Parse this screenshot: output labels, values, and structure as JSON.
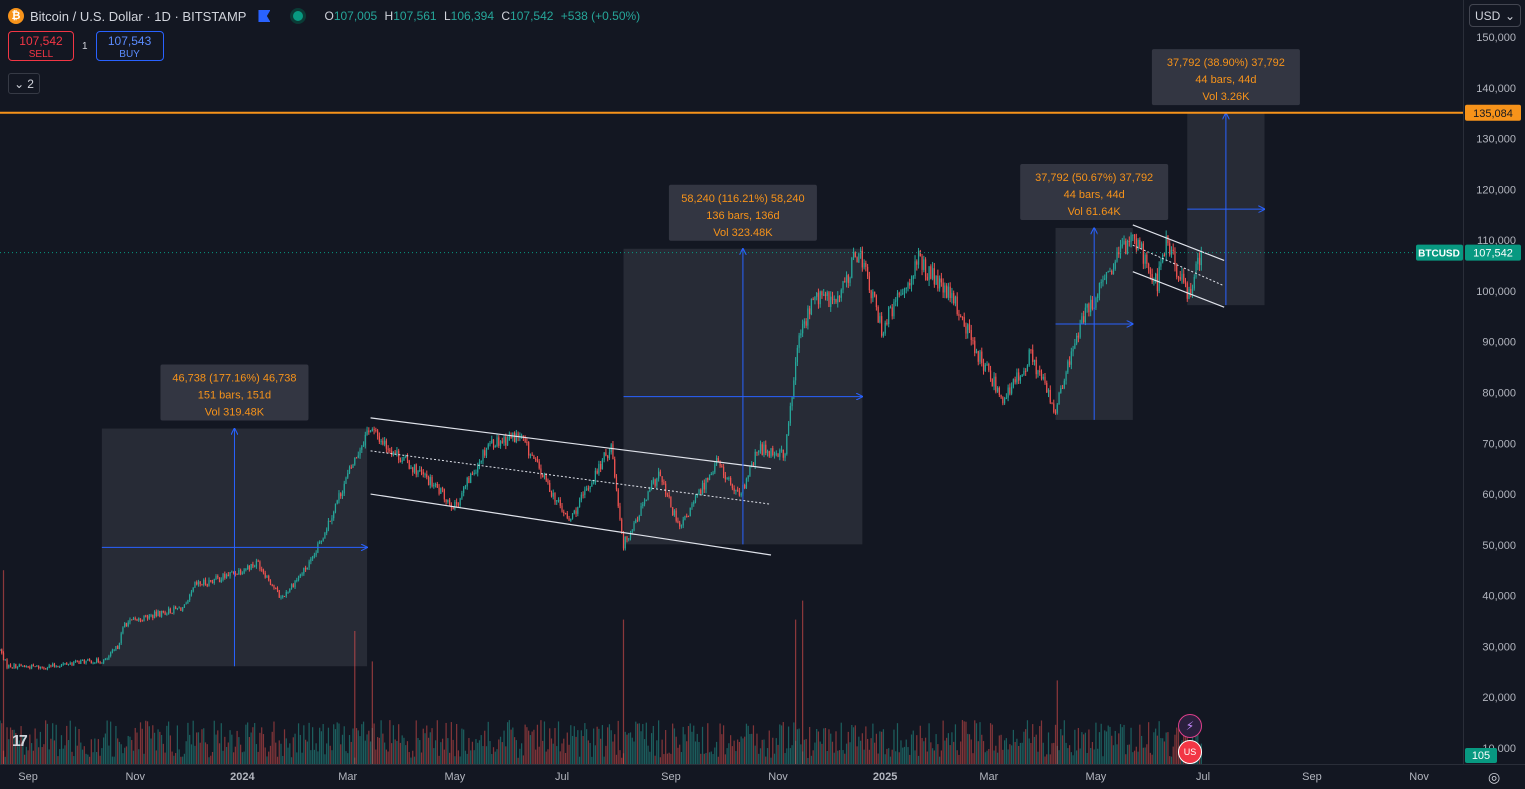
{
  "header": {
    "coin_glyph": "₿",
    "title": "Bitcoin / U.S. Dollar · 1D · BITSTAMP",
    "ohlc": {
      "o_label": "O",
      "o": "107,005",
      "h_label": "H",
      "h": "107,561",
      "l_label": "L",
      "l": "106,394",
      "c_label": "C",
      "c": "107,542",
      "change": "+538 (+0.50%)"
    }
  },
  "trade": {
    "sell_price": "107,542",
    "sell_label": "SELL",
    "spread": "1",
    "buy_price": "107,543",
    "buy_label": "BUY"
  },
  "indicators_toggle": {
    "glyph": "⌄",
    "count": "2"
  },
  "currency": {
    "label": "USD",
    "glyph": "⌄"
  },
  "tv_logo": "17",
  "badges": {
    "bolt": "⚡",
    "flag": "US"
  },
  "gear_glyph": "◎",
  "colors": {
    "background": "#131722",
    "up": "#26a69a",
    "down": "#ef5350",
    "tool_blue": "#2962ff",
    "label_orange": "#f7931a",
    "alert_line": "#f7931a",
    "price_tag": "#089981"
  },
  "chart_data": {
    "type": "candlestick",
    "symbol_label": "BTCUSD",
    "last_price": 107542,
    "last_price_label": "107,542",
    "alert_price": 135084,
    "alert_price_label": "135,084",
    "volume_axis_label": "105",
    "y_axis": {
      "min": 10000,
      "max": 150000,
      "ticks": [
        10000,
        20000,
        30000,
        40000,
        50000,
        60000,
        70000,
        80000,
        90000,
        100000,
        110000,
        120000,
        130000,
        140000,
        150000
      ],
      "tick_labels": [
        "10,000",
        "20,000",
        "30,000",
        "40,000",
        "50,000",
        "60,000",
        "70,000",
        "80,000",
        "90,000",
        "100,000",
        "110,000",
        "120,000",
        "130,000",
        "140,000",
        "150,000"
      ]
    },
    "x_axis": {
      "start": "2023-08-16",
      "end": "2025-11-26",
      "ticks": [
        {
          "date": "2023-09-01",
          "label": "Sep",
          "bold": false
        },
        {
          "date": "2023-11-01",
          "label": "Nov",
          "bold": false
        },
        {
          "date": "2024-01-01",
          "label": "2024",
          "bold": true
        },
        {
          "date": "2024-03-01",
          "label": "Mar",
          "bold": false
        },
        {
          "date": "2024-05-01",
          "label": "May",
          "bold": false
        },
        {
          "date": "2024-07-01",
          "label": "Jul",
          "bold": false
        },
        {
          "date": "2024-09-01",
          "label": "Sep",
          "bold": false
        },
        {
          "date": "2024-11-01",
          "label": "Nov",
          "bold": false
        },
        {
          "date": "2025-01-01",
          "label": "2025",
          "bold": true
        },
        {
          "date": "2025-03-01",
          "label": "Mar",
          "bold": false
        },
        {
          "date": "2025-05-01",
          "label": "May",
          "bold": false
        },
        {
          "date": "2025-07-01",
          "label": "Jul",
          "bold": false
        },
        {
          "date": "2025-09-01",
          "label": "Sep",
          "bold": false
        },
        {
          "date": "2025-11-01",
          "label": "Nov",
          "bold": false
        }
      ]
    },
    "price_path": [
      {
        "date": "2023-08-16",
        "price": 29300
      },
      {
        "date": "2023-08-20",
        "price": 26200
      },
      {
        "date": "2023-09-10",
        "price": 25900
      },
      {
        "date": "2023-10-01",
        "price": 27000
      },
      {
        "date": "2023-10-15",
        "price": 27200
      },
      {
        "date": "2023-10-22",
        "price": 30000
      },
      {
        "date": "2023-10-26",
        "price": 34500
      },
      {
        "date": "2023-11-15",
        "price": 36500
      },
      {
        "date": "2023-11-30",
        "price": 37800
      },
      {
        "date": "2023-12-05",
        "price": 42000
      },
      {
        "date": "2023-12-20",
        "price": 43500
      },
      {
        "date": "2024-01-10",
        "price": 46500
      },
      {
        "date": "2024-01-23",
        "price": 39500
      },
      {
        "date": "2024-02-10",
        "price": 47000
      },
      {
        "date": "2024-02-28",
        "price": 62000
      },
      {
        "date": "2024-03-13",
        "price": 73000
      },
      {
        "date": "2024-03-25",
        "price": 69000
      },
      {
        "date": "2024-04-15",
        "price": 63000
      },
      {
        "date": "2024-05-01",
        "price": 57500
      },
      {
        "date": "2024-05-20",
        "price": 70000
      },
      {
        "date": "2024-06-07",
        "price": 71500
      },
      {
        "date": "2024-06-25",
        "price": 60500
      },
      {
        "date": "2024-07-05",
        "price": 54500
      },
      {
        "date": "2024-07-29",
        "price": 69500
      },
      {
        "date": "2024-08-05",
        "price": 50000
      },
      {
        "date": "2024-08-25",
        "price": 64000
      },
      {
        "date": "2024-09-06",
        "price": 53000
      },
      {
        "date": "2024-09-27",
        "price": 66500
      },
      {
        "date": "2024-10-10",
        "price": 59000
      },
      {
        "date": "2024-10-21",
        "price": 69000
      },
      {
        "date": "2024-11-05",
        "price": 68000
      },
      {
        "date": "2024-11-13",
        "price": 91000
      },
      {
        "date": "2024-11-22",
        "price": 99000
      },
      {
        "date": "2024-12-05",
        "price": 98000
      },
      {
        "date": "2024-12-17",
        "price": 108300
      },
      {
        "date": "2024-12-30",
        "price": 92500
      },
      {
        "date": "2025-01-20",
        "price": 106000
      },
      {
        "date": "2025-02-10",
        "price": 97500
      },
      {
        "date": "2025-02-25",
        "price": 86000
      },
      {
        "date": "2025-03-10",
        "price": 78500
      },
      {
        "date": "2025-03-25",
        "price": 87500
      },
      {
        "date": "2025-04-08",
        "price": 76300
      },
      {
        "date": "2025-04-22",
        "price": 93500
      },
      {
        "date": "2025-05-08",
        "price": 103000
      },
      {
        "date": "2025-05-22",
        "price": 111500
      },
      {
        "date": "2025-06-05",
        "price": 101500
      },
      {
        "date": "2025-06-10",
        "price": 110000
      },
      {
        "date": "2025-06-22",
        "price": 99000
      },
      {
        "date": "2025-06-30",
        "price": 107542
      }
    ],
    "volume_spikes": [
      {
        "date": "2023-08-18",
        "value": 51
      },
      {
        "date": "2024-03-05",
        "value": 35
      },
      {
        "date": "2024-03-15",
        "value": 27
      },
      {
        "date": "2024-08-05",
        "value": 38
      },
      {
        "date": "2024-11-11",
        "value": 38
      },
      {
        "date": "2024-11-15",
        "value": 43
      },
      {
        "date": "2025-04-09",
        "value": 22
      }
    ],
    "measure_tools": [
      {
        "label_line1": "46,738 (177.16%) 46,738",
        "label_line2": "151 bars, 151d",
        "label_line3": "Vol 319.48K",
        "start": "2023-10-13",
        "end": "2024-03-12",
        "low": 26100,
        "high": 72900
      },
      {
        "label_line1": "58,240 (116.21%) 58,240",
        "label_line2": "136 bars, 136d",
        "label_line3": "Vol 323.48K",
        "start": "2024-08-05",
        "end": "2024-12-19",
        "low": 50100,
        "high": 108300
      },
      {
        "label_line1": "37,792 (50.67%) 37,792",
        "label_line2": "44 bars, 44d",
        "label_line3": "Vol 61.64K",
        "start": "2025-04-08",
        "end": "2025-05-22",
        "low": 74600,
        "high": 112400
      },
      {
        "label_line1": "37,792 (38.90%) 37,792",
        "label_line2": "44 bars, 44d",
        "label_line3": "Vol 3.26K",
        "start": "2025-06-22",
        "end": "2025-08-05",
        "low": 97200,
        "high": 135000
      }
    ],
    "channels": [
      {
        "start": "2024-03-14",
        "end": "2024-10-28",
        "upper": [
          75000,
          65000
        ],
        "mid": [
          68500,
          58000
        ],
        "lower": [
          60000,
          48000
        ]
      },
      {
        "start": "2025-05-22",
        "end": "2025-07-13",
        "upper": [
          113000,
          106000
        ],
        "mid": [
          109000,
          101000
        ],
        "lower": [
          103800,
          96800
        ]
      }
    ]
  }
}
